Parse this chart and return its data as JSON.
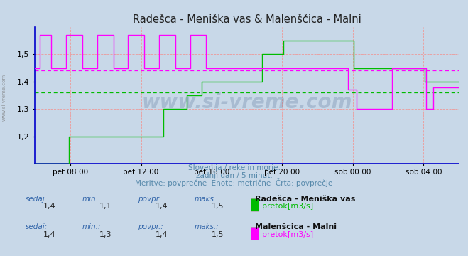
{
  "title": "Radešca - Meniška vas & Malenščica - Malni",
  "bg_color": "#c8d8e8",
  "plot_bg_color": "#c8d8e8",
  "title_color": "#333333",
  "yticks": [
    1.2,
    1.3,
    1.4,
    1.5
  ],
  "ylabel_min": 1.1,
  "ylabel_max": 1.6,
  "xtick_labels": [
    "pet 08:00",
    "pet 12:00",
    "pet 16:00",
    "pet 20:00",
    "sob 00:00",
    "sob 04:00"
  ],
  "xtick_positions": [
    0.083,
    0.25,
    0.417,
    0.583,
    0.75,
    0.917
  ],
  "subtitle1": "Slovenija / reke in morje.",
  "subtitle2": "zadnji dan / 5 minut.",
  "subtitle3": "Meritve: povprečne  Enote: metrične  Črta: povprečje",
  "watermark": "www.si-vreme.com",
  "green_color": "#00bb00",
  "magenta_color": "#ff00ff",
  "green_avg": 1.36,
  "magenta_avg": 1.44,
  "side_label": "www.si-vreme.com",
  "legend_items": [
    {
      "label": "Radešca - Meniška vas",
      "sublabel": "pretok[m3/s]",
      "color": "#00bb00",
      "sedaj": "1,4",
      "min": "1,1",
      "povpr": "1,4",
      "maks": "1,5"
    },
    {
      "label": "Malenšcica - Malni",
      "sublabel": "pretok[m3/s]",
      "color": "#ff00ff",
      "sedaj": "1,4",
      "min": "1,3",
      "povpr": "1,4",
      "maks": "1,5"
    }
  ]
}
